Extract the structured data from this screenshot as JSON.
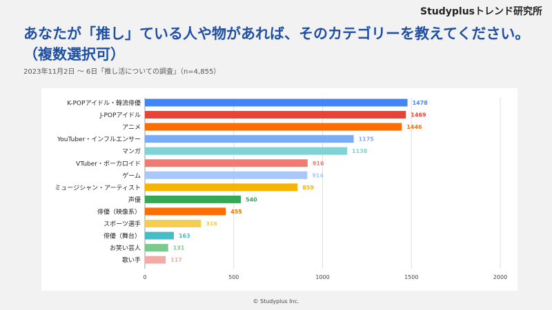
{
  "header": {
    "brand": "Studyplusトレンド研究所",
    "title": "あなたが「推し」ている人や物があれば、そのカテゴリーを教えてください。（複数選択可）",
    "subtitle": "2023年11月2日 〜 6日「推し活についての調査」（n=4,855）"
  },
  "footer": {
    "copyright": "© Studyplus Inc."
  },
  "chart_data": {
    "type": "bar",
    "orientation": "horizontal",
    "categories": [
      "K-POPアイドル・韓流俳優",
      "J-POPアイドル",
      "アニメ",
      "YouTuber・インフルエンサー",
      "マンガ",
      "VTuber・ボーカロイド",
      "ゲーム",
      "ミュージシャン・アーティスト",
      "声優",
      "俳優（映像系）",
      "スポーツ選手",
      "俳優（舞台）",
      "お笑い芸人",
      "歌い手"
    ],
    "values": [
      1478,
      1469,
      1446,
      1175,
      1138,
      916,
      914,
      859,
      540,
      455,
      316,
      163,
      131,
      117
    ],
    "colors": [
      "#4285f4",
      "#ea4335",
      "#ff6d01",
      "#7baaf7",
      "#7fd3d6",
      "#f07b72",
      "#a8c7fa",
      "#f4b400",
      "#34a853",
      "#ff6d01",
      "#f6cd4f",
      "#46bdc6",
      "#7bc98d",
      "#f4aaa4"
    ],
    "xticks": [
      "0",
      "500",
      "1000",
      "1500",
      "2000"
    ],
    "xlim": [
      0,
      2000
    ],
    "grid": true,
    "data_labels": true
  }
}
